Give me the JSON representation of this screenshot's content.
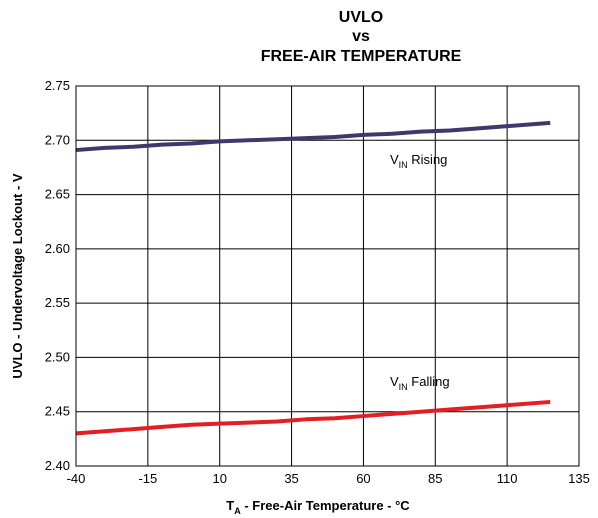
{
  "chart_data": {
    "type": "line",
    "title": [
      "UVLO",
      "vs",
      "FREE-AIR TEMPERATURE"
    ],
    "xlabel": {
      "main": "T",
      "sub": "A",
      "rest": " - Free-Air Temperature - °C"
    },
    "ylabel": "UVLO - Undervoltage Lockout - V",
    "xlim": [
      -40,
      135
    ],
    "ylim": [
      2.4,
      2.75
    ],
    "x_ticks": [
      -40,
      -15,
      10,
      35,
      60,
      85,
      110,
      135
    ],
    "y_ticks": [
      "2.40",
      "2.45",
      "2.50",
      "2.55",
      "2.60",
      "2.65",
      "2.70",
      "2.75"
    ],
    "grid": true,
    "series": [
      {
        "name": {
          "main": "V",
          "sub": "IN",
          "rest": " Rising"
        },
        "color": "#3d3a6b",
        "x": [
          -40,
          -30,
          -20,
          -10,
          0,
          10,
          20,
          30,
          40,
          50,
          60,
          70,
          80,
          90,
          100,
          110,
          125
        ],
        "y": [
          2.691,
          2.693,
          2.694,
          2.696,
          2.697,
          2.699,
          2.7,
          2.701,
          2.702,
          2.703,
          2.705,
          2.706,
          2.708,
          2.709,
          2.711,
          2.713,
          2.716
        ]
      },
      {
        "name": {
          "main": "V",
          "sub": "IN",
          "rest": " Falling"
        },
        "color": "#e31e24",
        "x": [
          -40,
          -30,
          -20,
          -10,
          0,
          10,
          20,
          30,
          40,
          50,
          60,
          70,
          80,
          90,
          100,
          110,
          125
        ],
        "y": [
          2.43,
          2.432,
          2.434,
          2.436,
          2.438,
          2.439,
          2.44,
          2.441,
          2.443,
          2.444,
          2.446,
          2.448,
          2.45,
          2.452,
          2.454,
          2.456,
          2.459
        ]
      }
    ]
  }
}
